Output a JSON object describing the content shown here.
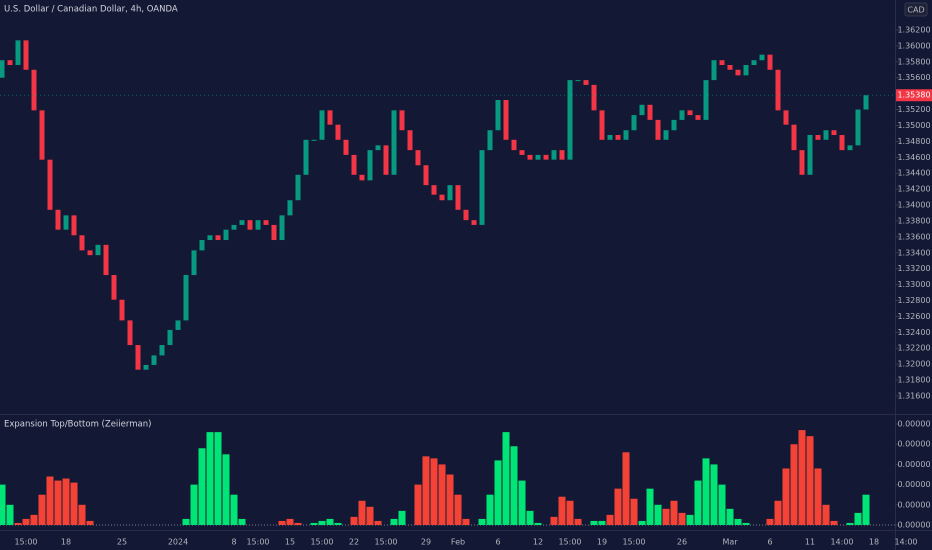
{
  "chart_data": {
    "type": "candlestick",
    "title": "U.S. Dollar / Canadian Dollar, 4h, OANDA",
    "currency": "CAD",
    "up_color": "#089981",
    "down_color": "#f23645",
    "categories": [
      null,
      null,
      null,
      "15:00",
      null,
      null,
      null,
      null,
      "18",
      null,
      null,
      null,
      null,
      null,
      null,
      "25",
      null,
      null,
      null,
      null,
      null,
      null,
      "2024",
      null,
      null,
      null,
      null,
      null,
      null,
      "8",
      null,
      null,
      "15:00",
      null,
      null,
      null,
      "15",
      null,
      null,
      null,
      "15:00",
      null,
      null,
      null,
      "22",
      null,
      null,
      null,
      "15:00",
      null,
      null,
      null,
      null,
      "29",
      null,
      null,
      null,
      "Feb",
      null,
      null,
      null,
      null,
      "6",
      null,
      null,
      null,
      null,
      "12",
      null,
      null,
      null,
      "15:00",
      null,
      null,
      null,
      "19",
      null,
      null,
      null,
      "15:00",
      null,
      null,
      null,
      null,
      null,
      "26",
      null,
      null,
      null,
      null,
      null,
      "Mar",
      null,
      null,
      null,
      null,
      "6",
      null,
      null,
      null,
      null,
      "11",
      null,
      null,
      null,
      "14:00",
      null,
      null,
      null,
      "18",
      null,
      null,
      null,
      "14:00"
    ],
    "open": [
      1.356,
      1.3582,
      1.3576,
      1.3607,
      1.357,
      1.3519,
      1.3457,
      1.3394,
      1.3369,
      1.3387,
      1.3362,
      1.3343,
      1.3337,
      1.335,
      1.3312,
      1.3281,
      1.3255,
      1.3224,
      1.3193,
      1.3199,
      1.3211,
      1.3224,
      1.3243,
      1.3255,
      1.3312,
      1.3343,
      1.3356,
      1.3362,
      1.3356,
      1.3369,
      1.3375,
      1.3381,
      1.3369,
      1.3381,
      1.3375,
      1.3356,
      1.3387,
      1.3406,
      1.3438,
      1.3482,
      1.3482,
      1.3519,
      1.3501,
      1.3482,
      1.3463,
      1.3438,
      1.3431,
      1.3469,
      1.3475,
      1.3438,
      1.3519,
      1.3494,
      1.3469,
      1.345,
      1.3425,
      1.3413,
      1.3406,
      1.3425,
      1.3394,
      1.3381,
      1.3375,
      1.3469,
      1.3494,
      1.3532,
      1.3482,
      1.3469,
      1.3463,
      1.3457,
      1.3463,
      1.3457,
      1.3469,
      1.3457,
      1.3557,
      1.3557,
      1.3551,
      1.3519,
      1.3482,
      1.3488,
      1.3482,
      1.3494,
      1.3513,
      1.3526,
      1.3507,
      1.3482,
      1.3494,
      1.3507,
      1.3519,
      1.3513,
      1.3507,
      1.3557,
      1.3582,
      1.3576,
      1.357,
      1.3563,
      1.3576,
      1.3582,
      1.3589,
      1.357,
      1.3519,
      1.3501,
      1.3469,
      1.3438,
      1.3488,
      1.3482,
      1.3494,
      1.3488,
      1.3469,
      1.3475,
      1.352,
      null,
      null,
      null,
      null,
      null
    ],
    "close": [
      1.3582,
      1.3576,
      1.3607,
      1.357,
      1.3519,
      1.3457,
      1.3394,
      1.3369,
      1.3387,
      1.3362,
      1.3343,
      1.3337,
      1.335,
      1.3312,
      1.3281,
      1.3255,
      1.3224,
      1.3193,
      1.3199,
      1.3211,
      1.3224,
      1.3243,
      1.3255,
      1.3312,
      1.3343,
      1.3356,
      1.3362,
      1.3356,
      1.3369,
      1.3375,
      1.3381,
      1.3369,
      1.3381,
      1.3375,
      1.3356,
      1.3387,
      1.3406,
      1.3438,
      1.3482,
      1.3482,
      1.3519,
      1.3501,
      1.3482,
      1.3463,
      1.3438,
      1.3431,
      1.3469,
      1.3475,
      1.3438,
      1.3519,
      1.3494,
      1.3469,
      1.345,
      1.3425,
      1.3413,
      1.3406,
      1.3425,
      1.3394,
      1.3381,
      1.3375,
      1.3469,
      1.3494,
      1.3532,
      1.3482,
      1.3469,
      1.3463,
      1.3457,
      1.3463,
      1.3457,
      1.3469,
      1.3457,
      1.3557,
      1.3557,
      1.3551,
      1.3519,
      1.3482,
      1.3488,
      1.3482,
      1.3494,
      1.3513,
      1.3526,
      1.3507,
      1.3482,
      1.3494,
      1.3507,
      1.3519,
      1.3513,
      1.3507,
      1.3557,
      1.3582,
      1.3576,
      1.357,
      1.3563,
      1.3576,
      1.3582,
      1.3589,
      1.357,
      1.3519,
      1.3501,
      1.3469,
      1.3438,
      1.3488,
      1.3482,
      1.3494,
      1.3488,
      1.3469,
      1.3475,
      1.352,
      1.3538,
      null,
      null,
      null,
      null,
      null
    ],
    "ylim": [
      1.31386,
      1.36577
    ],
    "yticks": [
      {
        "value": 1.316,
        "label": "1.31600"
      },
      {
        "value": 1.318,
        "label": "1.31800"
      },
      {
        "value": 1.32,
        "label": "1.32000"
      },
      {
        "value": 1.322,
        "label": "1.32200"
      },
      {
        "value": 1.324,
        "label": "1.32400"
      },
      {
        "value": 1.326,
        "label": "1.32600"
      },
      {
        "value": 1.328,
        "label": "1.32800"
      },
      {
        "value": 1.33,
        "label": "1.33000"
      },
      {
        "value": 1.332,
        "label": "1.33200"
      },
      {
        "value": 1.334,
        "label": "1.33400"
      },
      {
        "value": 1.336,
        "label": "1.33600"
      },
      {
        "value": 1.338,
        "label": "1.33800"
      },
      {
        "value": 1.34,
        "label": "1.34000"
      },
      {
        "value": 1.342,
        "label": "1.34200"
      },
      {
        "value": 1.344,
        "label": "1.34400"
      },
      {
        "value": 1.346,
        "label": "1.34600"
      },
      {
        "value": 1.348,
        "label": "1.34800"
      },
      {
        "value": 1.35,
        "label": "1.35000"
      },
      {
        "value": 1.352,
        "label": "1.35200"
      },
      {
        "value": 1.354,
        "label": "1.35400"
      },
      {
        "value": 1.356,
        "label": "1.35600"
      },
      {
        "value": 1.358,
        "label": "1.35800"
      },
      {
        "value": 1.36,
        "label": "1.36000"
      },
      {
        "value": 1.362,
        "label": "1.36200"
      }
    ],
    "last_price": {
      "value": 1.3538,
      "label": "1.35380"
    },
    "indicator": {
      "type": "bar",
      "title": "Expansion Top/Bottom (Zeiierman)",
      "ylim": [
        -1.5e-07,
        5.3e-06
      ],
      "yticks": [
        {
          "value": 0,
          "label": "0.00000"
        },
        {
          "value": 1e-06,
          "label": "0.00000"
        },
        {
          "value": 2e-06,
          "label": "0.00000"
        },
        {
          "value": 3e-06,
          "label": "0.00000"
        },
        {
          "value": 4e-06,
          "label": "0.00000"
        },
        {
          "value": 5e-06,
          "label": "0.00000"
        }
      ],
      "series": [
        {
          "color": "#00e676",
          "values": [
            2e-06,
            1e-06,
            null,
            null,
            null,
            null,
            null,
            null,
            null,
            null,
            null,
            null,
            null,
            null,
            null,
            null,
            null,
            null,
            null,
            null,
            null,
            null,
            null,
            3e-07,
            2e-06,
            3.8e-06,
            4.6e-06,
            4.6e-06,
            3.5e-06,
            1.5e-06,
            3e-07,
            null,
            null,
            null,
            null,
            null,
            null,
            null,
            null,
            1e-07,
            2e-07,
            3e-07,
            1e-07,
            null,
            null,
            null,
            null,
            null,
            null,
            3e-07,
            7e-07,
            null,
            null,
            null,
            null,
            null,
            null,
            null,
            null,
            null,
            3e-07,
            1.5e-06,
            3.2e-06,
            4.6e-06,
            3.9e-06,
            2.2e-06,
            7e-07,
            1e-07,
            null,
            null,
            null,
            null,
            null,
            null,
            2e-07,
            2e-07,
            null,
            null,
            null,
            null,
            2e-07,
            1.8e-06,
            1e-06,
            null,
            null,
            null,
            5e-07,
            2.2e-06,
            3.3e-06,
            3e-06,
            2e-06,
            8e-07,
            3e-07,
            1e-07,
            null,
            null,
            null,
            null,
            null,
            null,
            null,
            null,
            null,
            null,
            null,
            null,
            1e-07,
            6e-07,
            1.5e-06,
            null,
            null,
            null,
            null,
            null
          ]
        },
        {
          "color": "#f44336",
          "values": [
            null,
            null,
            1e-07,
            3e-07,
            5e-07,
            1.5e-06,
            2.4e-06,
            2.2e-06,
            2.3e-06,
            2.1e-06,
            1e-06,
            2e-07,
            null,
            null,
            null,
            null,
            null,
            null,
            null,
            null,
            null,
            null,
            null,
            null,
            null,
            null,
            null,
            null,
            null,
            null,
            null,
            null,
            null,
            null,
            null,
            2e-07,
            3e-07,
            1e-07,
            null,
            null,
            null,
            null,
            null,
            null,
            4e-07,
            1.2e-06,
            9e-07,
            2e-07,
            null,
            null,
            null,
            null,
            2e-06,
            3.4e-06,
            3.3e-06,
            3e-06,
            2.5e-06,
            1.5e-06,
            3e-07,
            null,
            null,
            null,
            null,
            null,
            null,
            null,
            null,
            null,
            null,
            4e-07,
            1.4e-06,
            1.2e-06,
            3e-07,
            null,
            null,
            null,
            5e-07,
            1.8e-06,
            3.6e-06,
            1.3e-06,
            null,
            null,
            null,
            8e-07,
            1.2e-06,
            6e-07,
            null,
            null,
            null,
            null,
            null,
            null,
            null,
            null,
            null,
            null,
            3e-07,
            1.2e-06,
            2.8e-06,
            4e-06,
            4.7e-06,
            4.4e-06,
            2.8e-06,
            1e-06,
            2e-07,
            null,
            null,
            null,
            null,
            null,
            null,
            null,
            null,
            null
          ]
        }
      ]
    }
  }
}
